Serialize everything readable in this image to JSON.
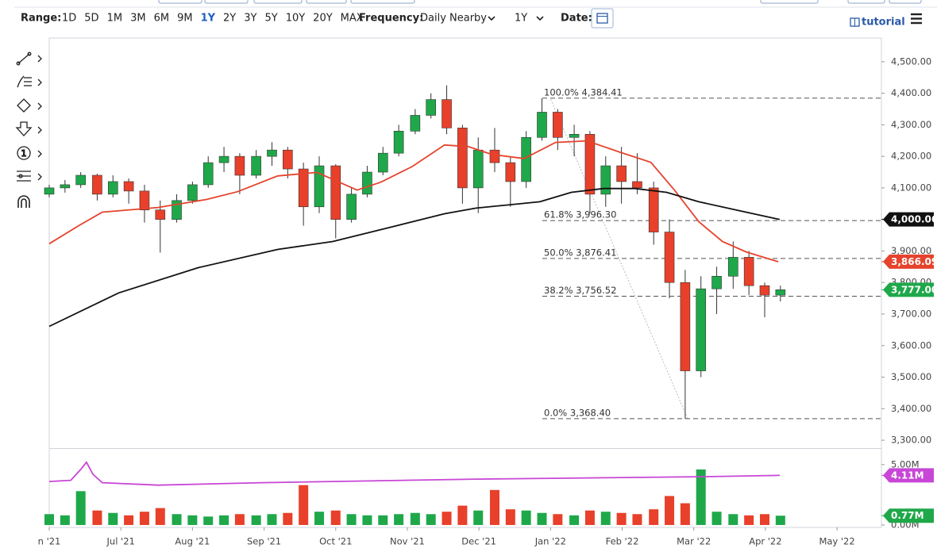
{
  "toolbar": {
    "range_label": "Range:",
    "ranges": [
      "1D",
      "5D",
      "1M",
      "3M",
      "6M",
      "9M",
      "1Y",
      "2Y",
      "3Y",
      "5Y",
      "10Y",
      "20Y",
      "MAX"
    ],
    "active_range": "1Y",
    "frequency_label": "Frequency:",
    "frequency": "Daily Nearby",
    "period": "1Y",
    "date_label": "Date:",
    "tutorial": "tutorial",
    "tool_number": "1"
  },
  "chart_data": {
    "type": "candlestick",
    "x": [
      0,
      0.22,
      0.44,
      0.67,
      0.89,
      1.11,
      1.33,
      1.55,
      1.78,
      2.0,
      2.22,
      2.44,
      2.66,
      2.89,
      3.11,
      3.33,
      3.55,
      3.77,
      4.0,
      4.22,
      4.44,
      4.66,
      4.88,
      5.11,
      5.33,
      5.55,
      5.77,
      5.99,
      6.22,
      6.44,
      6.66,
      6.88,
      7.1,
      7.33,
      7.55,
      7.77,
      7.99,
      8.21,
      8.44,
      8.66,
      8.88,
      9.1,
      9.32,
      9.55,
      9.77,
      9.99,
      10.21
    ],
    "open": [
      4080,
      4100,
      4110,
      4140,
      4080,
      4120,
      4090,
      4030,
      4000,
      4060,
      4110,
      4180,
      4200,
      4140,
      4200,
      4220,
      4160,
      4040,
      4170,
      4000,
      4080,
      4150,
      4210,
      4280,
      4330,
      4380,
      4290,
      4100,
      4220,
      4180,
      4120,
      4260,
      4340,
      4260,
      4270,
      4080,
      4170,
      4120,
      4100,
      3960,
      3800,
      3520,
      3780,
      3820,
      3880,
      3790,
      3760
    ],
    "high": [
      4110,
      4125,
      4150,
      4145,
      4140,
      4130,
      4110,
      4060,
      4080,
      4120,
      4200,
      4230,
      4210,
      4220,
      4245,
      4230,
      4180,
      4200,
      4175,
      4100,
      4170,
      4230,
      4300,
      4350,
      4400,
      4425,
      4300,
      4260,
      4290,
      4200,
      4280,
      4384,
      4350,
      4300,
      4280,
      4200,
      4230,
      4210,
      4120,
      4000,
      3840,
      3820,
      3850,
      3930,
      3900,
      3800,
      3790
    ],
    "low": [
      4070,
      4085,
      4100,
      4060,
      4070,
      4050,
      3990,
      3895,
      3990,
      4050,
      4100,
      4150,
      4080,
      4130,
      4170,
      4130,
      3980,
      4020,
      3940,
      3990,
      4070,
      4140,
      4200,
      4270,
      4320,
      4270,
      4050,
      4020,
      4150,
      4040,
      4100,
      4250,
      4220,
      4200,
      4020,
      4040,
      4050,
      4080,
      3920,
      3750,
      3368,
      3500,
      3700,
      3780,
      3760,
      3690,
      3740
    ],
    "close": [
      4100,
      4110,
      4140,
      4080,
      4120,
      4090,
      4030,
      4000,
      4060,
      4110,
      4180,
      4200,
      4140,
      4200,
      4220,
      4160,
      4040,
      4170,
      4000,
      4080,
      4150,
      4210,
      4280,
      4330,
      4380,
      4290,
      4100,
      4220,
      4180,
      4120,
      4260,
      4340,
      4260,
      4270,
      4080,
      4170,
      4120,
      4100,
      3960,
      3800,
      3520,
      3780,
      3820,
      3880,
      3790,
      3760,
      3777
    ],
    "up_color": "#1fa84a",
    "down_color": "#e8402a",
    "xlim": [
      0,
      11.62
    ],
    "xticks": [
      {
        "value": 0,
        "label": "n '21"
      },
      {
        "value": 1,
        "label": "Jul '21"
      },
      {
        "value": 2,
        "label": "Aug '21"
      },
      {
        "value": 3,
        "label": "Sep '21"
      },
      {
        "value": 4,
        "label": "Oct '21"
      },
      {
        "value": 5,
        "label": "Nov '21"
      },
      {
        "value": 6,
        "label": "Dec '21"
      },
      {
        "value": 7,
        "label": "Jan '22"
      },
      {
        "value": 8,
        "label": "Feb '22"
      },
      {
        "value": 9,
        "label": "Mar '22"
      },
      {
        "value": 10,
        "label": "Apr '22"
      },
      {
        "value": 11,
        "label": "May '22"
      }
    ],
    "ylim": [
      3275,
      4575
    ],
    "yticks": [
      {
        "value": 3300,
        "label": "3,300.00"
      },
      {
        "value": 3400,
        "label": "3,400.00"
      },
      {
        "value": 3500,
        "label": "3,500.00"
      },
      {
        "value": 3600,
        "label": "3,600.00"
      },
      {
        "value": 3700,
        "label": "3,700.00"
      },
      {
        "value": 3800,
        "label": "3,800.00"
      },
      {
        "value": 3900,
        "label": "3,900.00"
      },
      {
        "value": 4000,
        "label": "4,000.00"
      },
      {
        "value": 4100,
        "label": "4,100.00"
      },
      {
        "value": 4200,
        "label": "4,200.00"
      },
      {
        "value": 4300,
        "label": "4,300.00"
      },
      {
        "value": 4400,
        "label": "4,400.00"
      },
      {
        "value": 4500,
        "label": "4,500.00"
      }
    ],
    "lines": [
      {
        "color": "#e5432d",
        "x": [
          0,
          0.41,
          0.74,
          1.52,
          2.19,
          2.63,
          3.19,
          3.74,
          4.3,
          4.63,
          5.07,
          5.52,
          5.85,
          6.18,
          6.63,
          7.07,
          7.51,
          7.96,
          8.4,
          8.73,
          9.07,
          9.4,
          9.73,
          10.18
        ],
        "values": [
          3923,
          3980,
          4023,
          4038,
          4063,
          4088,
          4138,
          4149,
          4093,
          4118,
          4168,
          4236,
          4231,
          4206,
          4193,
          4244,
          4249,
          4214,
          4181,
          4093,
          3993,
          3930,
          3897,
          3866
        ]
      },
      {
        "color": "#111111",
        "x": [
          0,
          0.97,
          2.08,
          3.19,
          3.96,
          4.85,
          5.52,
          5.96,
          6.85,
          7.29,
          7.74,
          8.18,
          8.62,
          9.07,
          9.73,
          10.2
        ],
        "values": [
          3661,
          3767,
          3847,
          3905,
          3930,
          3980,
          4018,
          4036,
          4056,
          4086,
          4098,
          4098,
          4086,
          4056,
          4023,
          4000
        ]
      }
    ],
    "fib_levels": [
      {
        "value": 4384.41,
        "label": "100.0% 4,384.41"
      },
      {
        "value": 3996.3,
        "label": "61.8% 3,996.30"
      },
      {
        "value": 3876.41,
        "label": "50.0% 3,876.41"
      },
      {
        "value": 3756.52,
        "label": "38.2% 3,756.52"
      },
      {
        "value": 3368.4,
        "label": "0.0% 3,368.40"
      }
    ],
    "price_labels": [
      {
        "value": 4000.06,
        "label": "4,000.06",
        "color": "#111111"
      },
      {
        "value": 3866.09,
        "label": "3,866.09",
        "color": "#e5432d"
      },
      {
        "value": 3777,
        "label": "3,777.00",
        "color": "#1fa84a"
      }
    ],
    "volume": {
      "values": [
        0.9,
        0.8,
        2.8,
        1.2,
        1.0,
        0.8,
        1.1,
        1.4,
        0.9,
        0.8,
        0.7,
        0.8,
        0.9,
        0.8,
        0.9,
        1.0,
        3.3,
        1.1,
        1.2,
        0.9,
        0.8,
        0.8,
        0.9,
        1.0,
        0.9,
        1.1,
        1.6,
        1.2,
        2.9,
        1.3,
        1.2,
        1.0,
        0.9,
        0.8,
        1.2,
        1.1,
        1.0,
        0.9,
        1.3,
        2.4,
        1.8,
        4.6,
        1.1,
        0.9,
        0.8,
        0.9,
        0.77
      ],
      "ylim": [
        -0.2,
        6.3
      ],
      "yticks": [
        {
          "value": 5,
          "label": "5.00M"
        },
        {
          "value": 0,
          "label": "0.00M"
        }
      ],
      "line": {
        "color": "#c846d6",
        "x": [
          0,
          0.3,
          0.44,
          0.52,
          0.61,
          0.74,
          1.52,
          2.96,
          5.96,
          9.18,
          10.2
        ],
        "values": [
          3.6,
          3.7,
          4.6,
          5.2,
          4.2,
          3.5,
          3.3,
          3.5,
          3.8,
          4.0,
          4.11
        ]
      },
      "price_labels": [
        {
          "value": 4.11,
          "label": "4.11M",
          "color": "#c846d6"
        },
        {
          "value": 0.77,
          "label": "0.77M",
          "color": "#1fa84a"
        }
      ]
    }
  }
}
